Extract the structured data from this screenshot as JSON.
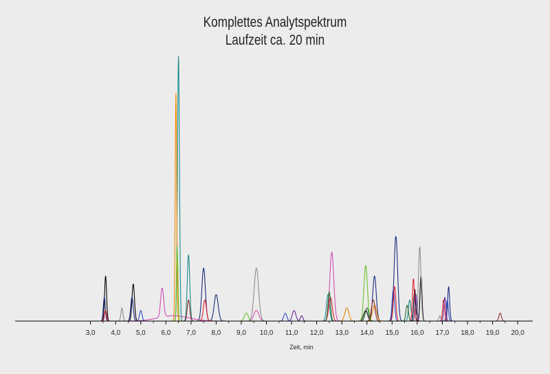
{
  "chart_data": {
    "type": "line",
    "title": "Komplettes Analytspektrum",
    "subtitle": "Laufzeit ca. 20 min",
    "xlabel": "Zeit, min",
    "ylabel": "",
    "xlim": [
      0.0,
      20.6
    ],
    "ylim": [
      0,
      1.0
    ],
    "xticks": [
      3.0,
      4.0,
      5.0,
      6.0,
      7.0,
      8.0,
      9.0,
      10.0,
      11.0,
      12.0,
      13.0,
      14.0,
      15.0,
      16.0,
      17.0,
      18.0,
      19.0,
      20.0
    ],
    "xtick_labels": [
      "3,0",
      "4,0",
      "5,0",
      "6,0",
      "7,0",
      "8,0",
      "9,0",
      "10,0",
      "11,0",
      "12,0",
      "13,0",
      "14,0",
      "15,0",
      "16,0",
      "17,0",
      "18,0",
      "19,0",
      "20,0"
    ],
    "grid": false,
    "legend": "none",
    "series": [
      {
        "color": "#000000",
        "peaks": [
          [
            3.6,
            0.17,
            0.04
          ],
          [
            4.7,
            0.14,
            0.05
          ],
          [
            13.95,
            0.04,
            0.08
          ],
          [
            15.9,
            0.12,
            0.04
          ],
          [
            16.15,
            0.17,
            0.04
          ]
        ]
      },
      {
        "color": "#1a2a7a",
        "peaks": [
          [
            3.55,
            0.09,
            0.04
          ],
          [
            4.65,
            0.09,
            0.05
          ],
          [
            7.5,
            0.2,
            0.07
          ],
          [
            8.0,
            0.1,
            0.08
          ],
          [
            15.15,
            0.32,
            0.07
          ],
          [
            14.3,
            0.17,
            0.07
          ],
          [
            17.25,
            0.13,
            0.04
          ]
        ]
      },
      {
        "color": "#1b8a8a",
        "peaks": [
          [
            6.5,
            1.0,
            0.04
          ],
          [
            6.9,
            0.25,
            0.05
          ],
          [
            12.45,
            0.1,
            0.06
          ],
          [
            15.7,
            0.08,
            0.05
          ]
        ]
      },
      {
        "color": "#f08a00",
        "peaks": [
          [
            6.4,
            0.86,
            0.03
          ],
          [
            13.2,
            0.05,
            0.08
          ],
          [
            14.3,
            0.06,
            0.08
          ]
        ]
      },
      {
        "color": "#d04ab0",
        "peaks": [
          [
            5.85,
            0.11,
            0.06
          ],
          [
            12.6,
            0.26,
            0.08
          ],
          [
            6.3,
            0.02,
            0.6
          ],
          [
            9.6,
            0.04,
            0.1
          ]
        ]
      },
      {
        "color": "#8d8d8d",
        "peaks": [
          [
            4.25,
            0.05,
            0.04
          ],
          [
            9.6,
            0.2,
            0.09
          ],
          [
            16.1,
            0.28,
            0.05
          ],
          [
            16.9,
            0.02,
            0.04
          ]
        ]
      },
      {
        "color": "#2f4fc0",
        "peaks": [
          [
            5.0,
            0.04,
            0.05
          ],
          [
            10.75,
            0.03,
            0.06
          ],
          [
            15.05,
            0.12,
            0.05
          ],
          [
            17.2,
            0.08,
            0.04
          ]
        ]
      },
      {
        "color": "#6cc02a",
        "peaks": [
          [
            13.95,
            0.21,
            0.07
          ],
          [
            6.45,
            0.28,
            0.03
          ],
          [
            9.2,
            0.03,
            0.08
          ]
        ]
      },
      {
        "color": "#e02030",
        "peaks": [
          [
            3.6,
            0.04,
            0.04
          ],
          [
            7.55,
            0.08,
            0.06
          ],
          [
            12.55,
            0.09,
            0.07
          ],
          [
            15.1,
            0.13,
            0.05
          ],
          [
            15.85,
            0.16,
            0.04
          ],
          [
            17.05,
            0.08,
            0.04
          ]
        ]
      },
      {
        "color": "#8a2a2a",
        "peaks": [
          [
            6.9,
            0.08,
            0.05
          ],
          [
            14.25,
            0.08,
            0.07
          ],
          [
            19.3,
            0.03,
            0.05
          ]
        ]
      },
      {
        "color": "#6a2a9a",
        "peaks": [
          [
            11.1,
            0.04,
            0.07
          ],
          [
            11.4,
            0.02,
            0.05
          ],
          [
            15.95,
            0.1,
            0.04
          ],
          [
            17.1,
            0.09,
            0.04
          ]
        ]
      },
      {
        "color": "#2a6a2a",
        "peaks": [
          [
            12.5,
            0.11,
            0.05
          ],
          [
            15.6,
            0.06,
            0.05
          ],
          [
            14.0,
            0.05,
            0.07
          ]
        ]
      }
    ]
  }
}
